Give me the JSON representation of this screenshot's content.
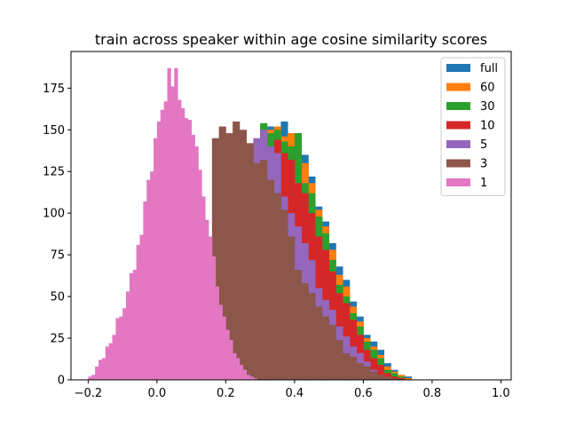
{
  "chart_data": {
    "type": "histogram",
    "title": "train across speaker within age cosine similarity scores",
    "xlabel": "",
    "ylabel": "",
    "xlim": [
      -0.25,
      1.03
    ],
    "ylim": [
      0,
      197
    ],
    "xticks": [
      -0.2,
      0.0,
      0.2,
      0.4,
      0.6,
      0.8,
      1.0
    ],
    "xtick_labels": [
      "−0.2",
      "0.0",
      "0.2",
      "0.4",
      "0.6",
      "0.8",
      "1.0"
    ],
    "yticks": [
      0,
      25,
      50,
      75,
      100,
      125,
      150,
      175
    ],
    "ytick_labels": [
      "0",
      "25",
      "50",
      "75",
      "100",
      "125",
      "150",
      "175"
    ],
    "grid": false,
    "legend_position": "top-right",
    "draw_order": [
      "full",
      "60",
      "30",
      "10",
      "5",
      "3",
      "1"
    ],
    "series": [
      {
        "name": "full",
        "color": "#1f77b4",
        "x0": 0.3,
        "bin_width": 0.02,
        "counts": [
          150,
          152,
          150,
          155,
          148,
          145,
          135,
          122,
          104,
          95,
          82,
          68,
          60,
          47,
          38,
          27,
          23,
          18,
          10,
          6,
          3,
          2
        ]
      },
      {
        "name": "60",
        "color": "#ff7f0e",
        "x0": 0.3,
        "bin_width": 0.02,
        "counts": [
          152,
          150,
          152,
          146,
          148,
          144,
          130,
          118,
          102,
          92,
          78,
          63,
          56,
          44,
          35,
          25,
          20,
          15,
          8,
          5,
          3,
          1
        ]
      },
      {
        "name": "30",
        "color": "#2ca02c",
        "x0": 0.3,
        "bin_width": 0.02,
        "counts": [
          154,
          148,
          150,
          143,
          140,
          148,
          118,
          112,
          98,
          88,
          72,
          57,
          50,
          40,
          32,
          23,
          18,
          13,
          6,
          4,
          2
        ]
      },
      {
        "name": "10",
        "color": "#d62728",
        "x0": 0.3,
        "bin_width": 0.02,
        "counts": [
          148,
          140,
          144,
          136,
          132,
          118,
          112,
          100,
          86,
          78,
          65,
          52,
          46,
          36,
          27,
          18,
          13,
          9,
          4,
          2,
          1
        ]
      },
      {
        "name": "5",
        "color": "#9467bd",
        "x0": 0.28,
        "bin_width": 0.02,
        "counts": [
          145,
          150,
          140,
          136,
          110,
          100,
          92,
          82,
          72,
          55,
          48,
          42,
          32,
          26,
          20,
          16,
          11,
          6,
          3,
          1
        ]
      },
      {
        "name": "3",
        "color": "#8c564b",
        "x0": 0.16,
        "bin_width": 0.02,
        "counts": [
          145,
          152,
          148,
          155,
          150,
          142,
          130,
          132,
          120,
          112,
          102,
          86,
          66,
          58,
          52,
          44,
          38,
          33,
          24,
          16,
          14,
          10,
          8,
          5,
          3,
          2,
          1
        ]
      },
      {
        "name": "1",
        "color": "#e377c2",
        "x0": -0.2,
        "bin_width": 0.01,
        "counts": [
          2,
          3,
          8,
          12,
          13,
          20,
          22,
          27,
          37,
          38,
          43,
          53,
          64,
          66,
          81,
          87,
          107,
          120,
          125,
          145,
          155,
          162,
          167,
          187,
          176,
          187,
          168,
          163,
          157,
          156,
          147,
          140,
          126,
          110,
          96,
          86,
          74,
          56,
          45,
          38,
          30,
          24,
          16,
          13,
          9,
          6,
          3,
          2,
          1
        ]
      }
    ]
  }
}
